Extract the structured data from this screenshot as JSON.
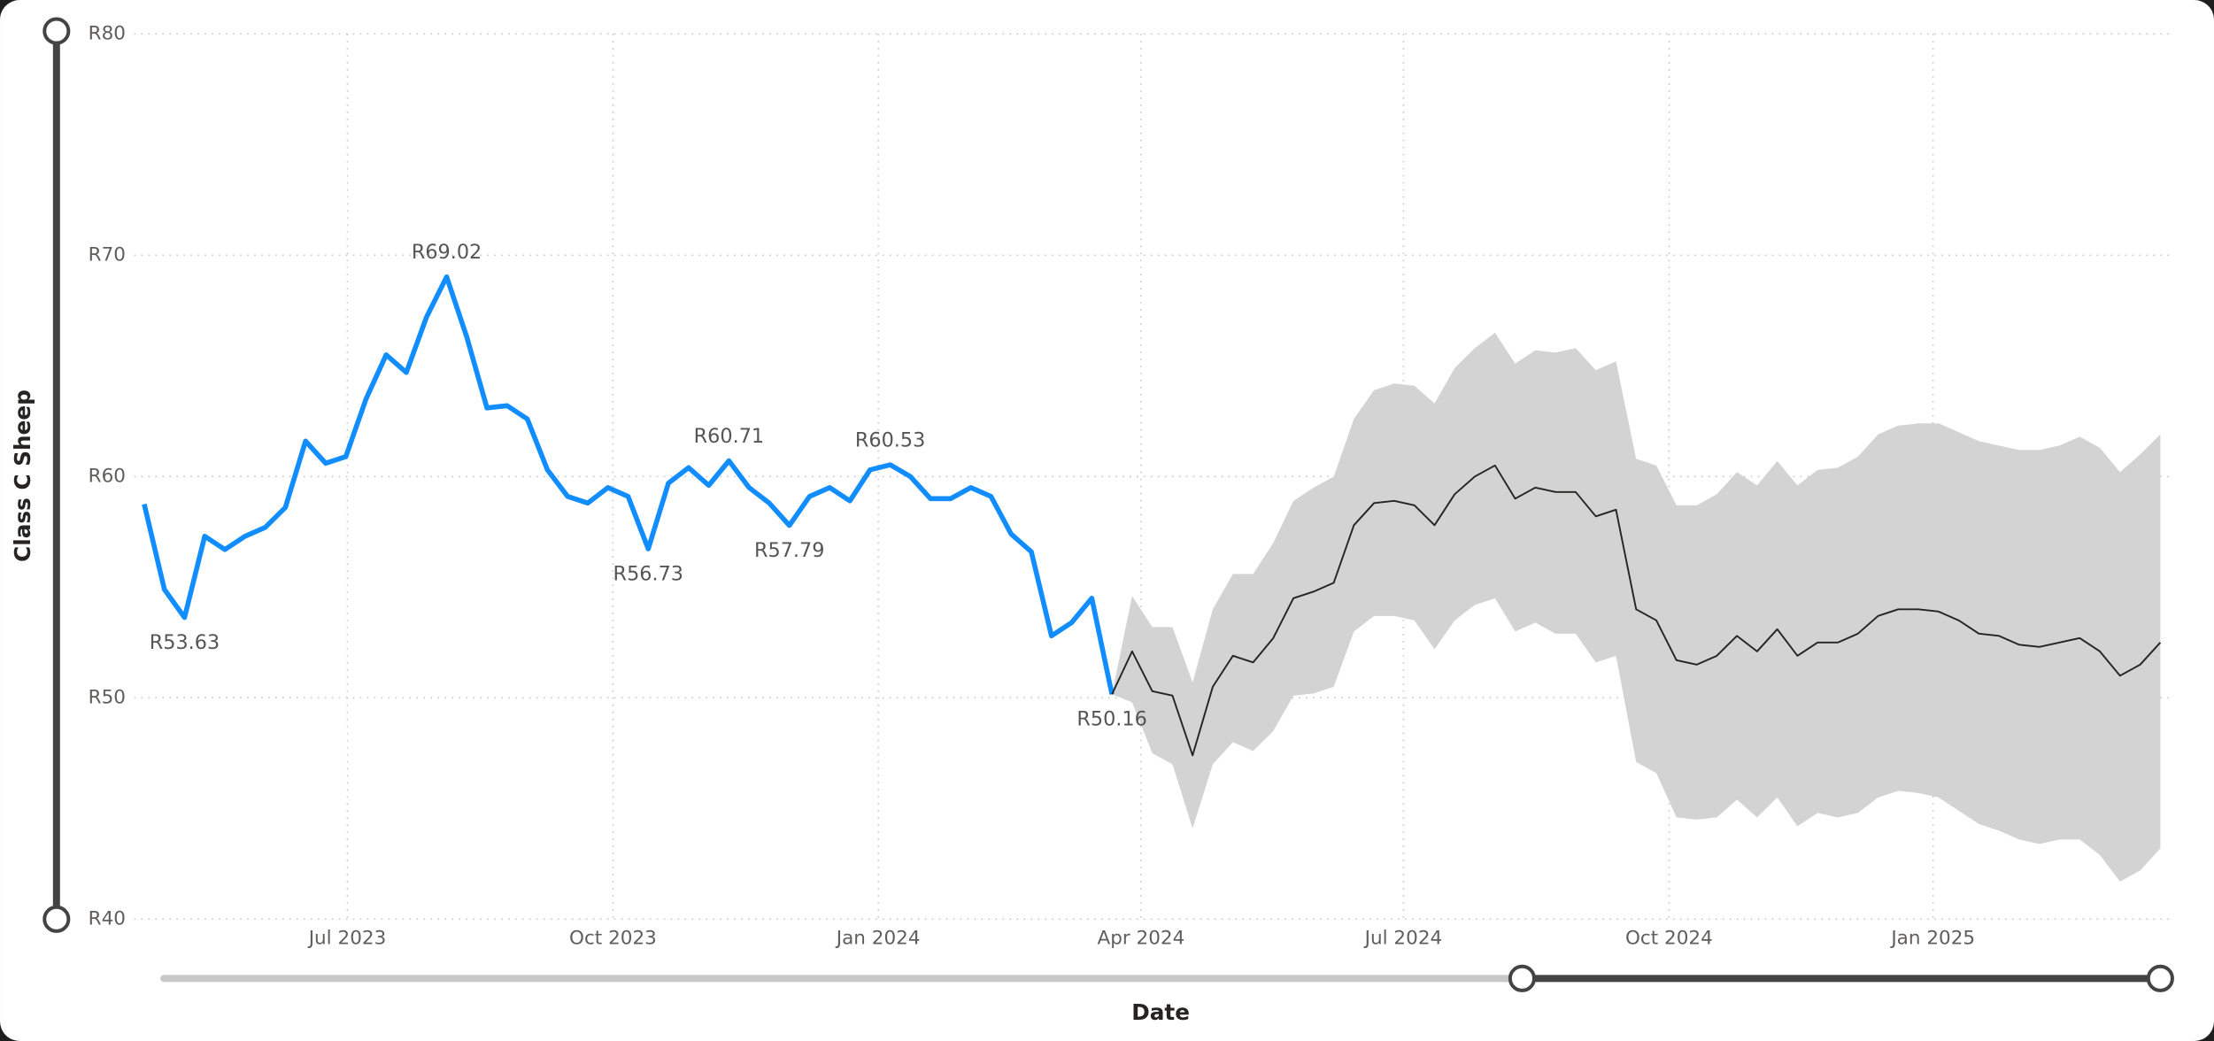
{
  "chart_data": {
    "type": "line",
    "y_label": "Class C Sheep",
    "x_label": "Date",
    "categories": [
      null,
      null,
      null,
      null,
      null,
      null,
      null,
      null,
      null,
      null,
      null,
      null,
      null,
      null,
      null,
      null,
      null,
      null,
      null,
      null,
      null,
      null,
      null,
      null,
      null,
      null,
      null,
      null,
      null,
      null,
      null,
      null,
      null,
      null,
      null,
      null,
      null,
      null,
      null,
      null,
      null,
      null,
      null,
      null,
      null,
      null,
      null,
      null,
      null,
      null,
      null,
      null,
      null,
      null,
      null,
      null,
      null,
      null,
      null,
      null,
      null,
      null,
      null,
      null,
      null,
      null,
      null,
      null,
      null,
      null,
      null,
      null,
      null,
      null,
      null,
      null,
      null,
      null,
      null,
      null,
      null,
      null,
      null,
      null,
      null,
      null,
      null,
      null,
      null,
      null,
      null,
      null,
      null,
      null,
      null,
      null,
      null,
      null,
      null,
      null,
      null
    ],
    "xlim": [
      -0.5,
      100.7
    ],
    "xticks": [
      {
        "value": 10.08,
        "label": "Jul 2023"
      },
      {
        "value": 23.25,
        "label": "Oct 2023"
      },
      {
        "value": 36.41,
        "label": "Jan 2024"
      },
      {
        "value": 49.44,
        "label": "Apr 2024"
      },
      {
        "value": 62.46,
        "label": "Jul 2024"
      },
      {
        "value": 75.63,
        "label": "Oct 2024"
      },
      {
        "value": 88.73,
        "label": "Jan 2025"
      }
    ],
    "ylim": [
      40,
      80
    ],
    "yticks": [
      {
        "value": 40,
        "label": "R40"
      },
      {
        "value": 50,
        "label": "R50"
      },
      {
        "value": 60,
        "label": "R60"
      },
      {
        "value": 70,
        "label": "R70"
      },
      {
        "value": 80,
        "label": "R80"
      }
    ],
    "grid": true,
    "series": [
      {
        "color": "#118dff",
        "values": [
          58.75,
          54.9,
          53.63,
          57.3,
          56.7,
          57.3,
          57.7,
          58.6,
          61.6,
          60.6,
          60.9,
          63.5,
          65.5,
          64.7,
          67.2,
          69.02,
          66.3,
          63.1,
          63.2,
          62.6,
          60.3,
          59.1,
          58.8,
          59.5,
          59.1,
          56.73,
          59.7,
          60.4,
          59.6,
          60.71,
          59.5,
          58.8,
          57.79,
          59.1,
          59.5,
          58.9,
          60.3,
          60.53,
          60.0,
          59.0,
          59.0,
          59.5,
          59.1,
          57.4,
          56.6,
          52.8,
          53.4,
          54.5,
          50.16,
          null,
          null,
          null,
          null,
          null,
          null,
          null,
          null,
          null,
          null,
          null,
          null,
          null,
          null,
          null,
          null,
          null,
          null,
          null,
          null,
          null,
          null,
          null,
          null,
          null,
          null,
          null,
          null,
          null,
          null,
          null,
          null,
          null,
          null,
          null,
          null,
          null,
          null,
          null,
          null,
          null,
          null,
          null,
          null,
          null,
          null,
          null,
          null,
          null,
          null,
          null,
          null
        ],
        "value_labels": [
          null,
          null,
          "R53.63",
          null,
          null,
          null,
          null,
          null,
          null,
          null,
          null,
          null,
          null,
          null,
          null,
          "R69.02",
          null,
          null,
          null,
          null,
          null,
          null,
          null,
          null,
          null,
          "R56.73",
          null,
          null,
          null,
          "R60.71",
          null,
          null,
          "R57.79",
          null,
          null,
          null,
          null,
          "R60.53",
          null,
          null,
          null,
          null,
          null,
          null,
          null,
          null,
          null,
          null,
          "R50.16",
          null,
          null,
          null,
          null,
          null,
          null,
          null,
          null,
          null,
          null,
          null,
          null,
          null,
          null,
          null,
          null,
          null,
          null,
          null,
          null,
          null,
          null,
          null,
          null,
          null,
          null,
          null,
          null,
          null,
          null,
          null,
          null,
          null,
          null,
          null,
          null,
          null,
          null,
          null,
          null,
          null,
          null,
          null,
          null,
          null,
          null,
          null,
          null,
          null,
          null,
          null,
          null
        ]
      },
      {
        "color": "#252423",
        "values": [
          null,
          null,
          null,
          null,
          null,
          null,
          null,
          null,
          null,
          null,
          null,
          null,
          null,
          null,
          null,
          null,
          null,
          null,
          null,
          null,
          null,
          null,
          null,
          null,
          null,
          null,
          null,
          null,
          null,
          null,
          null,
          null,
          null,
          null,
          null,
          null,
          null,
          null,
          null,
          null,
          null,
          null,
          null,
          null,
          null,
          null,
          null,
          null,
          50.16,
          52.1,
          50.3,
          50.1,
          47.4,
          50.5,
          51.9,
          51.6,
          52.7,
          54.5,
          54.8,
          55.2,
          57.8,
          58.8,
          58.9,
          58.7,
          57.8,
          59.2,
          60.0,
          60.5,
          59.0,
          59.5,
          59.3,
          59.3,
          58.2,
          58.5,
          54.0,
          53.5,
          51.7,
          51.5,
          51.9,
          52.8,
          52.1,
          53.1,
          51.9,
          52.5,
          52.5,
          52.9,
          53.7,
          54.0,
          54.0,
          53.9,
          53.5,
          52.9,
          52.8,
          52.4,
          52.3,
          52.5,
          52.7,
          52.1,
          51.0,
          51.5,
          52.5
        ]
      }
    ],
    "band": {
      "color": "#d3d3d3",
      "upper": [
        null,
        null,
        null,
        null,
        null,
        null,
        null,
        null,
        null,
        null,
        null,
        null,
        null,
        null,
        null,
        null,
        null,
        null,
        null,
        null,
        null,
        null,
        null,
        null,
        null,
        null,
        null,
        null,
        null,
        null,
        null,
        null,
        null,
        null,
        null,
        null,
        null,
        null,
        null,
        null,
        null,
        null,
        null,
        null,
        null,
        null,
        null,
        null,
        50.16,
        54.6,
        53.2,
        53.2,
        50.7,
        54.0,
        55.6,
        55.6,
        57.0,
        58.9,
        59.5,
        60.0,
        62.6,
        63.9,
        64.2,
        64.1,
        63.3,
        64.9,
        65.8,
        66.5,
        65.1,
        65.7,
        65.6,
        65.8,
        64.8,
        65.2,
        60.8,
        60.5,
        58.7,
        58.7,
        59.2,
        60.2,
        59.6,
        60.7,
        59.6,
        60.3,
        60.4,
        60.9,
        61.9,
        62.3,
        62.4,
        62.4,
        62.0,
        61.6,
        61.4,
        61.2,
        61.2,
        61.4,
        61.8,
        61.3,
        60.2,
        61.0,
        61.9
      ],
      "lower": [
        null,
        null,
        null,
        null,
        null,
        null,
        null,
        null,
        null,
        null,
        null,
        null,
        null,
        null,
        null,
        null,
        null,
        null,
        null,
        null,
        null,
        null,
        null,
        null,
        null,
        null,
        null,
        null,
        null,
        null,
        null,
        null,
        null,
        null,
        null,
        null,
        null,
        null,
        null,
        null,
        null,
        null,
        null,
        null,
        null,
        null,
        null,
        null,
        50.16,
        49.8,
        47.5,
        47.0,
        44.1,
        47.0,
        48.0,
        47.6,
        48.5,
        50.1,
        50.2,
        50.5,
        53.0,
        53.7,
        53.7,
        53.5,
        52.2,
        53.5,
        54.2,
        54.5,
        53.0,
        53.4,
        52.9,
        52.9,
        51.6,
        51.9,
        47.1,
        46.6,
        44.6,
        44.5,
        44.6,
        45.4,
        44.6,
        45.5,
        44.2,
        44.8,
        44.6,
        44.8,
        45.5,
        45.8,
        45.7,
        45.5,
        44.9,
        44.3,
        44.0,
        43.6,
        43.4,
        43.6,
        43.6,
        42.9,
        41.7,
        42.2,
        43.2
      ]
    }
  }
}
